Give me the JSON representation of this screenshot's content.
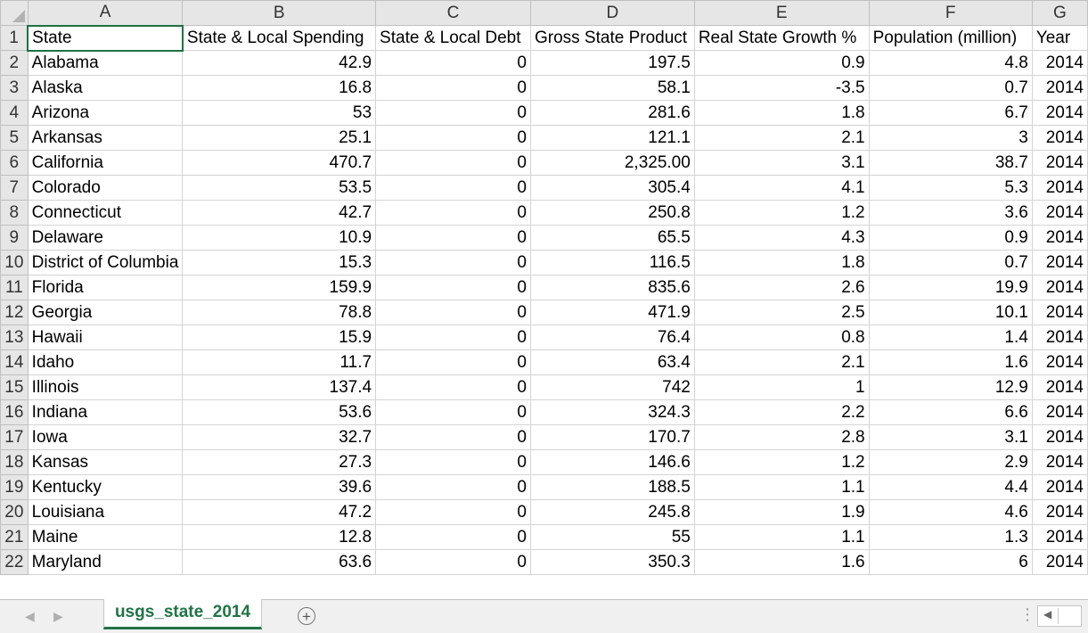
{
  "sheet": {
    "columns": [
      "A",
      "B",
      "C",
      "D",
      "E",
      "F",
      "G"
    ],
    "rows": [
      {
        "n": "1",
        "cells": [
          "State",
          "State & Local Spending",
          "State & Local Debt",
          "Gross State Product",
          "Real State Growth %",
          "Population (million)",
          "Year"
        ]
      },
      {
        "n": "2",
        "cells": [
          "Alabama",
          "42.9",
          "0",
          "197.5",
          "0.9",
          "4.8",
          "2014"
        ]
      },
      {
        "n": "3",
        "cells": [
          "Alaska",
          "16.8",
          "0",
          "58.1",
          "-3.5",
          "0.7",
          "2014"
        ]
      },
      {
        "n": "4",
        "cells": [
          "Arizona",
          "53",
          "0",
          "281.6",
          "1.8",
          "6.7",
          "2014"
        ]
      },
      {
        "n": "5",
        "cells": [
          "Arkansas",
          "25.1",
          "0",
          "121.1",
          "2.1",
          "3",
          "2014"
        ]
      },
      {
        "n": "6",
        "cells": [
          "California",
          "470.7",
          "0",
          "2,325.00",
          "3.1",
          "38.7",
          "2014"
        ]
      },
      {
        "n": "7",
        "cells": [
          "Colorado",
          "53.5",
          "0",
          "305.4",
          "4.1",
          "5.3",
          "2014"
        ]
      },
      {
        "n": "8",
        "cells": [
          "Connecticut",
          "42.7",
          "0",
          "250.8",
          "1.2",
          "3.6",
          "2014"
        ]
      },
      {
        "n": "9",
        "cells": [
          "Delaware",
          "10.9",
          "0",
          "65.5",
          "4.3",
          "0.9",
          "2014"
        ]
      },
      {
        "n": "10",
        "cells": [
          "District of Columbia",
          "15.3",
          "0",
          "116.5",
          "1.8",
          "0.7",
          "2014"
        ]
      },
      {
        "n": "11",
        "cells": [
          "Florida",
          "159.9",
          "0",
          "835.6",
          "2.6",
          "19.9",
          "2014"
        ]
      },
      {
        "n": "12",
        "cells": [
          "Georgia",
          "78.8",
          "0",
          "471.9",
          "2.5",
          "10.1",
          "2014"
        ]
      },
      {
        "n": "13",
        "cells": [
          "Hawaii",
          "15.9",
          "0",
          "76.4",
          "0.8",
          "1.4",
          "2014"
        ]
      },
      {
        "n": "14",
        "cells": [
          "Idaho",
          "11.7",
          "0",
          "63.4",
          "2.1",
          "1.6",
          "2014"
        ]
      },
      {
        "n": "15",
        "cells": [
          "Illinois",
          "137.4",
          "0",
          "742",
          "1",
          "12.9",
          "2014"
        ]
      },
      {
        "n": "16",
        "cells": [
          "Indiana",
          "53.6",
          "0",
          "324.3",
          "2.2",
          "6.6",
          "2014"
        ]
      },
      {
        "n": "17",
        "cells": [
          "Iowa",
          "32.7",
          "0",
          "170.7",
          "2.8",
          "3.1",
          "2014"
        ]
      },
      {
        "n": "18",
        "cells": [
          "Kansas",
          "27.3",
          "0",
          "146.6",
          "1.2",
          "2.9",
          "2014"
        ]
      },
      {
        "n": "19",
        "cells": [
          "Kentucky",
          "39.6",
          "0",
          "188.5",
          "1.1",
          "4.4",
          "2014"
        ]
      },
      {
        "n": "20",
        "cells": [
          "Louisiana",
          "47.2",
          "0",
          "245.8",
          "1.9",
          "4.6",
          "2014"
        ]
      },
      {
        "n": "21",
        "cells": [
          "Maine",
          "12.8",
          "0",
          "55",
          "1.1",
          "1.3",
          "2014"
        ]
      },
      {
        "n": "22",
        "cells": [
          "Maryland",
          "63.6",
          "0",
          "350.3",
          "1.6",
          "6",
          "2014"
        ]
      }
    ]
  },
  "tabs": {
    "active_sheet": "usgs_state_2014",
    "add_symbol": "⊕",
    "nav_prev": "◀",
    "nav_next": "▶"
  },
  "scroll": {
    "dots": "⋮",
    "left_arrow": "◀"
  },
  "colors": {
    "accent": "#217346",
    "header_bg": "#e6e6e6",
    "gridline": "#d4d4d4"
  }
}
